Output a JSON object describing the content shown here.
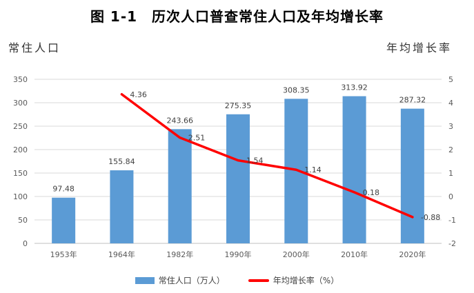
{
  "chart_data": {
    "type": "bar+line",
    "title": "图 1-1　历次人口普查常住人口及年均增长率",
    "ylabel_left": "常住人口",
    "ylabel_right": "年均增长率",
    "categories": [
      "1953年",
      "1964年",
      "1982年",
      "1990年",
      "2000年",
      "2010年",
      "2020年"
    ],
    "ylim_left": [
      0,
      350
    ],
    "yticks_left": [
      "0",
      "50",
      "100",
      "150",
      "200",
      "250",
      "300",
      "350"
    ],
    "ylim_right": [
      -2,
      5
    ],
    "yticks_right": [
      "-2",
      "-1",
      "0",
      "1",
      "2",
      "3",
      "4",
      "5"
    ],
    "series": [
      {
        "name": "常住人口（万人）",
        "type": "bar",
        "axis": "left",
        "color": "#5B9BD5",
        "values": [
          97.48,
          155.84,
          243.66,
          275.35,
          308.35,
          313.92,
          287.32
        ],
        "labels": [
          "97.48",
          "155.84",
          "243.66",
          "275.35",
          "308.35",
          "313.92",
          "287.32"
        ]
      },
      {
        "name": "年均增长率（%）",
        "type": "line",
        "axis": "right",
        "color": "#FF0000",
        "values": [
          null,
          4.36,
          2.51,
          1.54,
          1.14,
          0.18,
          -0.88
        ],
        "labels": [
          "",
          "4.36",
          "2.51",
          "1.54",
          "1.14",
          "0.18",
          "-0.88"
        ]
      }
    ],
    "grid": true,
    "legend": "bottom"
  }
}
